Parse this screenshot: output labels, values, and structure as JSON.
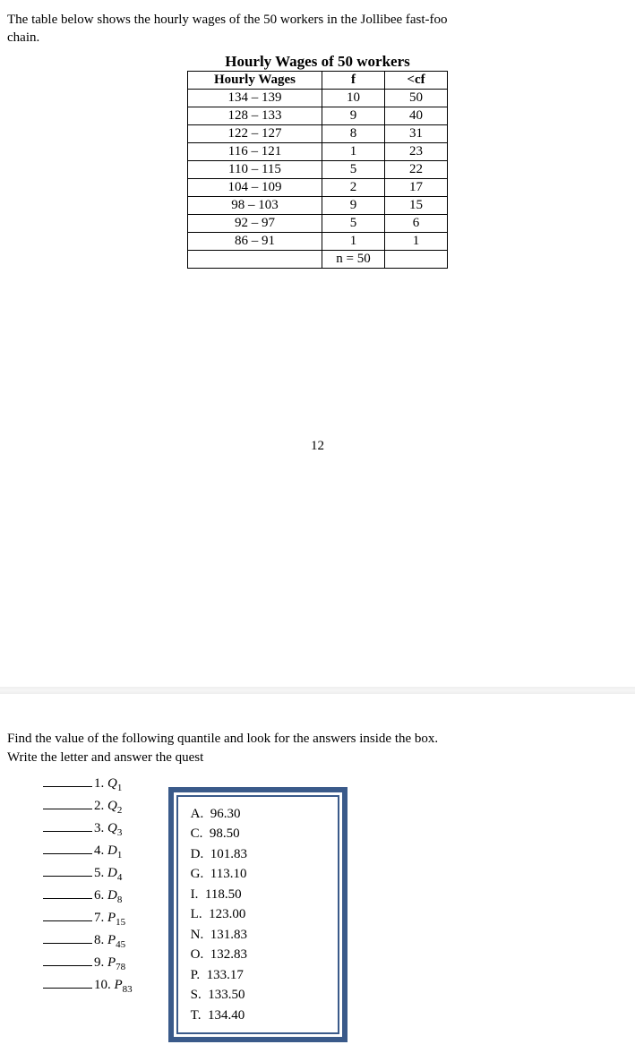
{
  "intro_line1": "The table below shows the hourly wages of the 50 workers in the Jollibee fast-foo",
  "intro_line2": "chain.",
  "table": {
    "title": "Hourly Wages of 50 workers",
    "headers": {
      "c1": "Hourly Wages",
      "c2": "f",
      "c3": "<cf"
    },
    "rows": [
      {
        "range": "134 – 139",
        "f": "10",
        "cf": "50"
      },
      {
        "range": "128 – 133",
        "f": "9",
        "cf": "40"
      },
      {
        "range": "122 – 127",
        "f": "8",
        "cf": "31"
      },
      {
        "range": "116 – 121",
        "f": "1",
        "cf": "23"
      },
      {
        "range": "110 – 115",
        "f": "5",
        "cf": "22"
      },
      {
        "range": "104 – 109",
        "f": "2",
        "cf": "17"
      },
      {
        "range": "98 – 103",
        "f": "9",
        "cf": "15"
      },
      {
        "range": "92 – 97",
        "f": "5",
        "cf": "6"
      },
      {
        "range": "86 – 91",
        "f": "1",
        "cf": "1"
      }
    ],
    "footer_f": "n = 50"
  },
  "page_number": "12",
  "question_intro1": "Find the value of the following quantile and look for the answers inside the box.",
  "question_intro2": "Write the letter and answer the quest",
  "quantiles": [
    {
      "num": "1.",
      "sym": "Q",
      "sub": "1"
    },
    {
      "num": "2.",
      "sym": "Q",
      "sub": "2"
    },
    {
      "num": "3.",
      "sym": "Q",
      "sub": "3"
    },
    {
      "num": "4.",
      "sym": "D",
      "sub": "1"
    },
    {
      "num": "5.",
      "sym": "D",
      "sub": "4"
    },
    {
      "num": "6.",
      "sym": "D",
      "sub": "8"
    },
    {
      "num": "7.",
      "sym": "P",
      "sub": "15"
    },
    {
      "num": "8.",
      "sym": "P",
      "sub": "45"
    },
    {
      "num": "9.",
      "sym": "P",
      "sub": "78"
    },
    {
      "num": "10.",
      "sym": "P",
      "sub": "83"
    }
  ],
  "answers": [
    {
      "letter": "A.",
      "val": "96.30"
    },
    {
      "letter": "C.",
      "val": "98.50"
    },
    {
      "letter": "D.",
      "val": "101.83"
    },
    {
      "letter": "G.",
      "val": "113.10"
    },
    {
      "letter": "I.",
      "val": "118.50"
    },
    {
      "letter": "L.",
      "val": "123.00"
    },
    {
      "letter": "N.",
      "val": "131.83"
    },
    {
      "letter": "O.",
      "val": "132.83"
    },
    {
      "letter": "P.",
      "val": "133.17"
    },
    {
      "letter": "S.",
      "val": "133.50"
    },
    {
      "letter": "T.",
      "val": "134.40"
    }
  ],
  "colors": {
    "box_border": "#3a5a8a",
    "text": "#000000",
    "bg": "#ffffff"
  }
}
